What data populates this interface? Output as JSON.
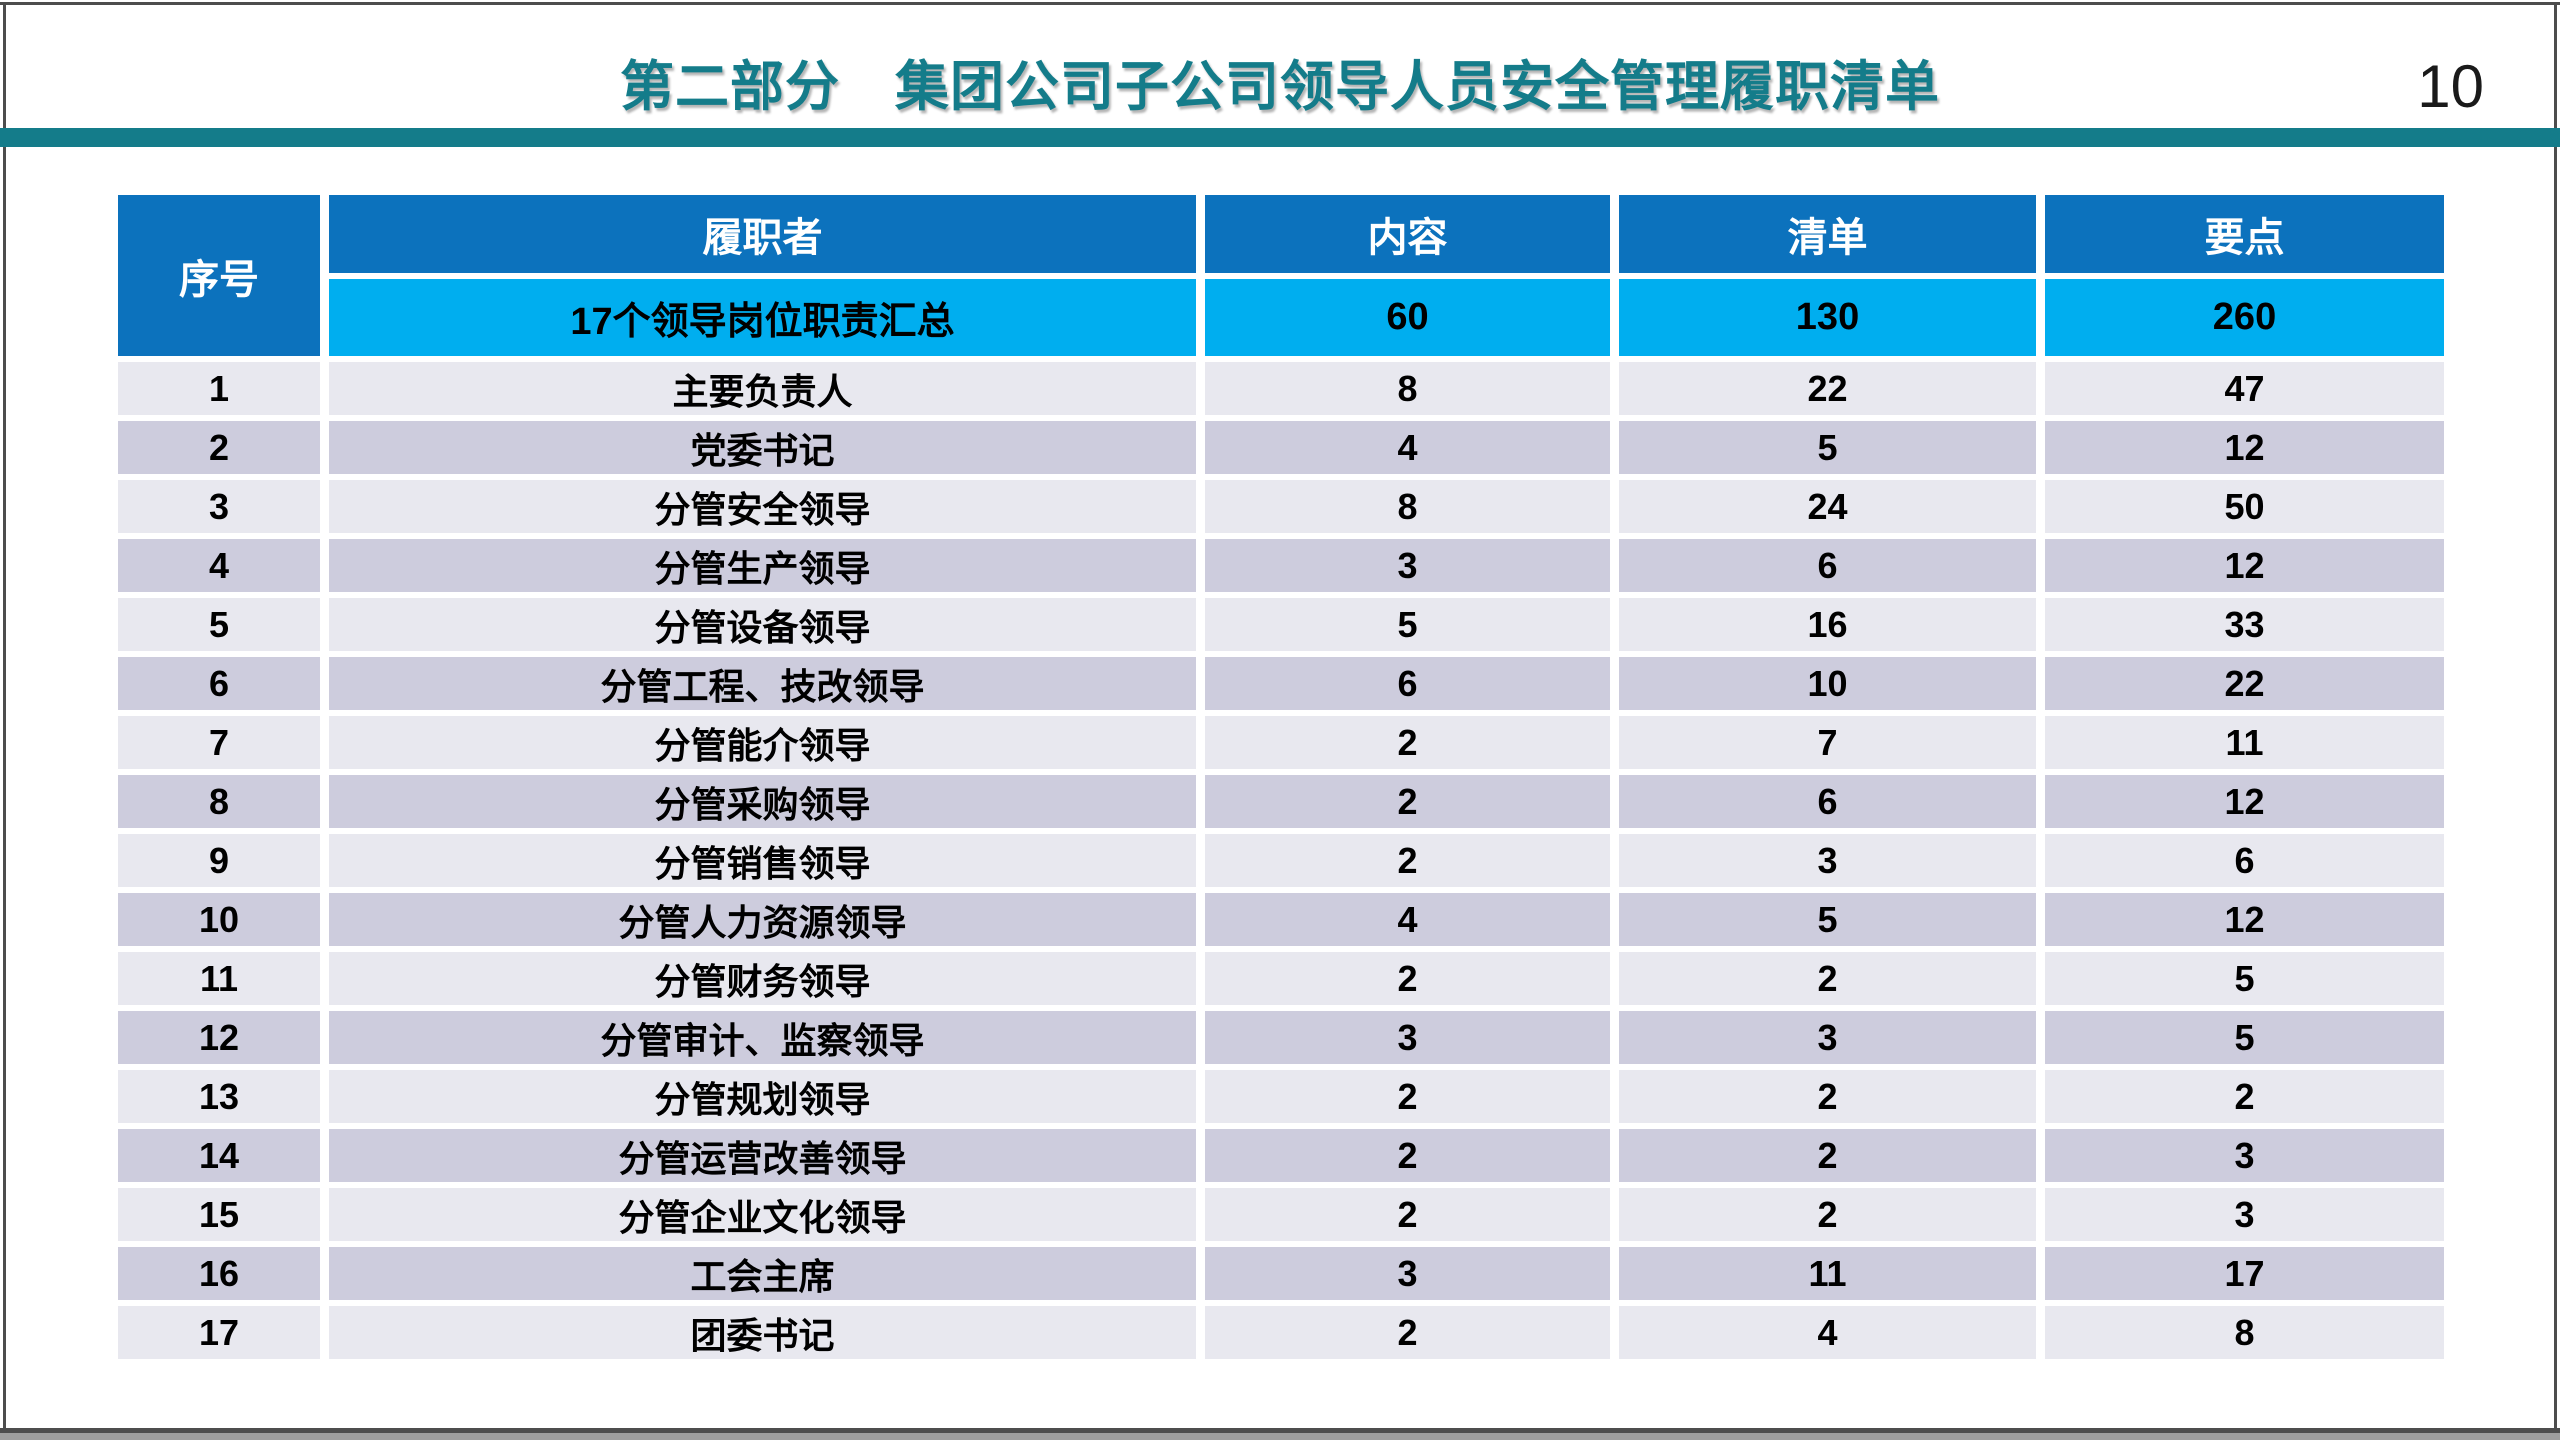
{
  "page": {
    "title": "第二部分　集团公司子公司领导人员安全管理履职清单",
    "page_number": "10"
  },
  "colors": {
    "title_teal": "#147c8a",
    "band_teal": "#147c8a",
    "header_blue": "#0c72bd",
    "summary_cyan": "#00aeef",
    "row_light": "#e8e8ef",
    "row_dark": "#cdccdd",
    "frame_gray": "#4d4d4d"
  },
  "table": {
    "columns": [
      "序号",
      "履职者",
      "内容",
      "清单",
      "要点"
    ],
    "summary": {
      "performer": "17个领导岗位职责汇总",
      "content": "60",
      "list": "130",
      "points": "260"
    },
    "rows": [
      {
        "no": "1",
        "performer": "主要负责人",
        "content": "8",
        "list": "22",
        "points": "47"
      },
      {
        "no": "2",
        "performer": "党委书记",
        "content": "4",
        "list": "5",
        "points": "12"
      },
      {
        "no": "3",
        "performer": "分管安全领导",
        "content": "8",
        "list": "24",
        "points": "50"
      },
      {
        "no": "4",
        "performer": "分管生产领导",
        "content": "3",
        "list": "6",
        "points": "12"
      },
      {
        "no": "5",
        "performer": "分管设备领导",
        "content": "5",
        "list": "16",
        "points": "33"
      },
      {
        "no": "6",
        "performer": "分管工程、技改领导",
        "content": "6",
        "list": "10",
        "points": "22"
      },
      {
        "no": "7",
        "performer": "分管能介领导",
        "content": "2",
        "list": "7",
        "points": "11"
      },
      {
        "no": "8",
        "performer": "分管采购领导",
        "content": "2",
        "list": "6",
        "points": "12"
      },
      {
        "no": "9",
        "performer": "分管销售领导",
        "content": "2",
        "list": "3",
        "points": "6"
      },
      {
        "no": "10",
        "performer": "分管人力资源领导",
        "content": "4",
        "list": "5",
        "points": "12"
      },
      {
        "no": "11",
        "performer": "分管财务领导",
        "content": "2",
        "list": "2",
        "points": "5"
      },
      {
        "no": "12",
        "performer": "分管审计、监察领导",
        "content": "3",
        "list": "3",
        "points": "5"
      },
      {
        "no": "13",
        "performer": "分管规划领导",
        "content": "2",
        "list": "2",
        "points": "2"
      },
      {
        "no": "14",
        "performer": "分管运营改善领导",
        "content": "2",
        "list": "2",
        "points": "3"
      },
      {
        "no": "15",
        "performer": "分管企业文化领导",
        "content": "2",
        "list": "2",
        "points": "3"
      },
      {
        "no": "16",
        "performer": "工会主席",
        "content": "3",
        "list": "11",
        "points": "17"
      },
      {
        "no": "17",
        "performer": "团委书记",
        "content": "2",
        "list": "4",
        "points": "8"
      }
    ]
  }
}
